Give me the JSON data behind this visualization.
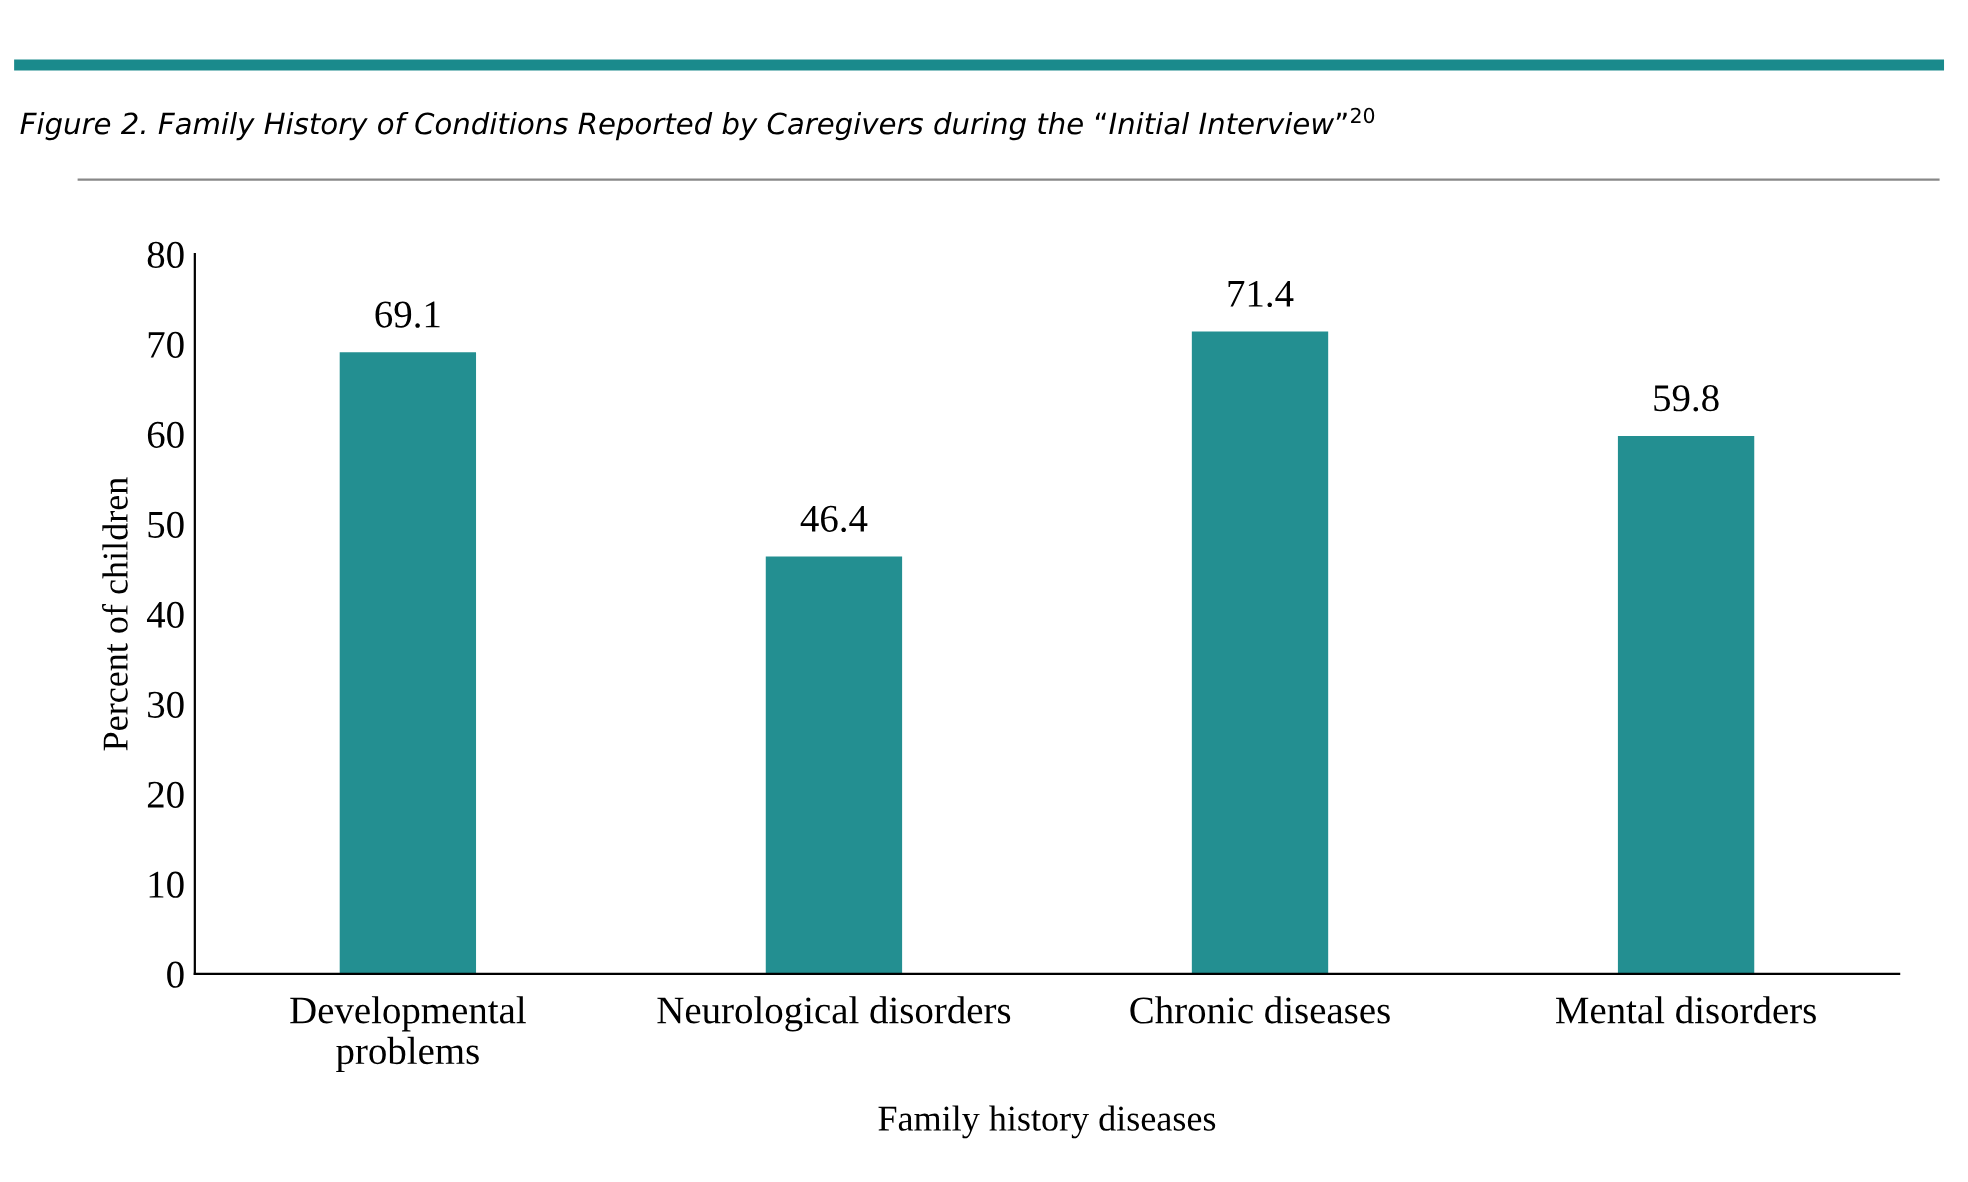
{
  "chart_data": {
    "type": "bar",
    "title": "Figure 2. Family History of Conditions Reported by Caregivers during the “Initial Interview”$^{20}$",
    "xlabel": "Family history diseases",
    "ylabel": "Percent of children",
    "categories": [
      "Developmental\nproblems",
      "Neurological disorders",
      "Chronic diseases",
      "Mental disorders"
    ],
    "values": [
      69.1,
      46.4,
      71.4,
      59.8
    ],
    "color": "#238f91",
    "ylim": [
      0,
      80
    ],
    "yticks": [
      0,
      10,
      20,
      30,
      40,
      50,
      60,
      70,
      80
    ],
    "data_labels": true,
    "grid": false,
    "legend": false
  }
}
